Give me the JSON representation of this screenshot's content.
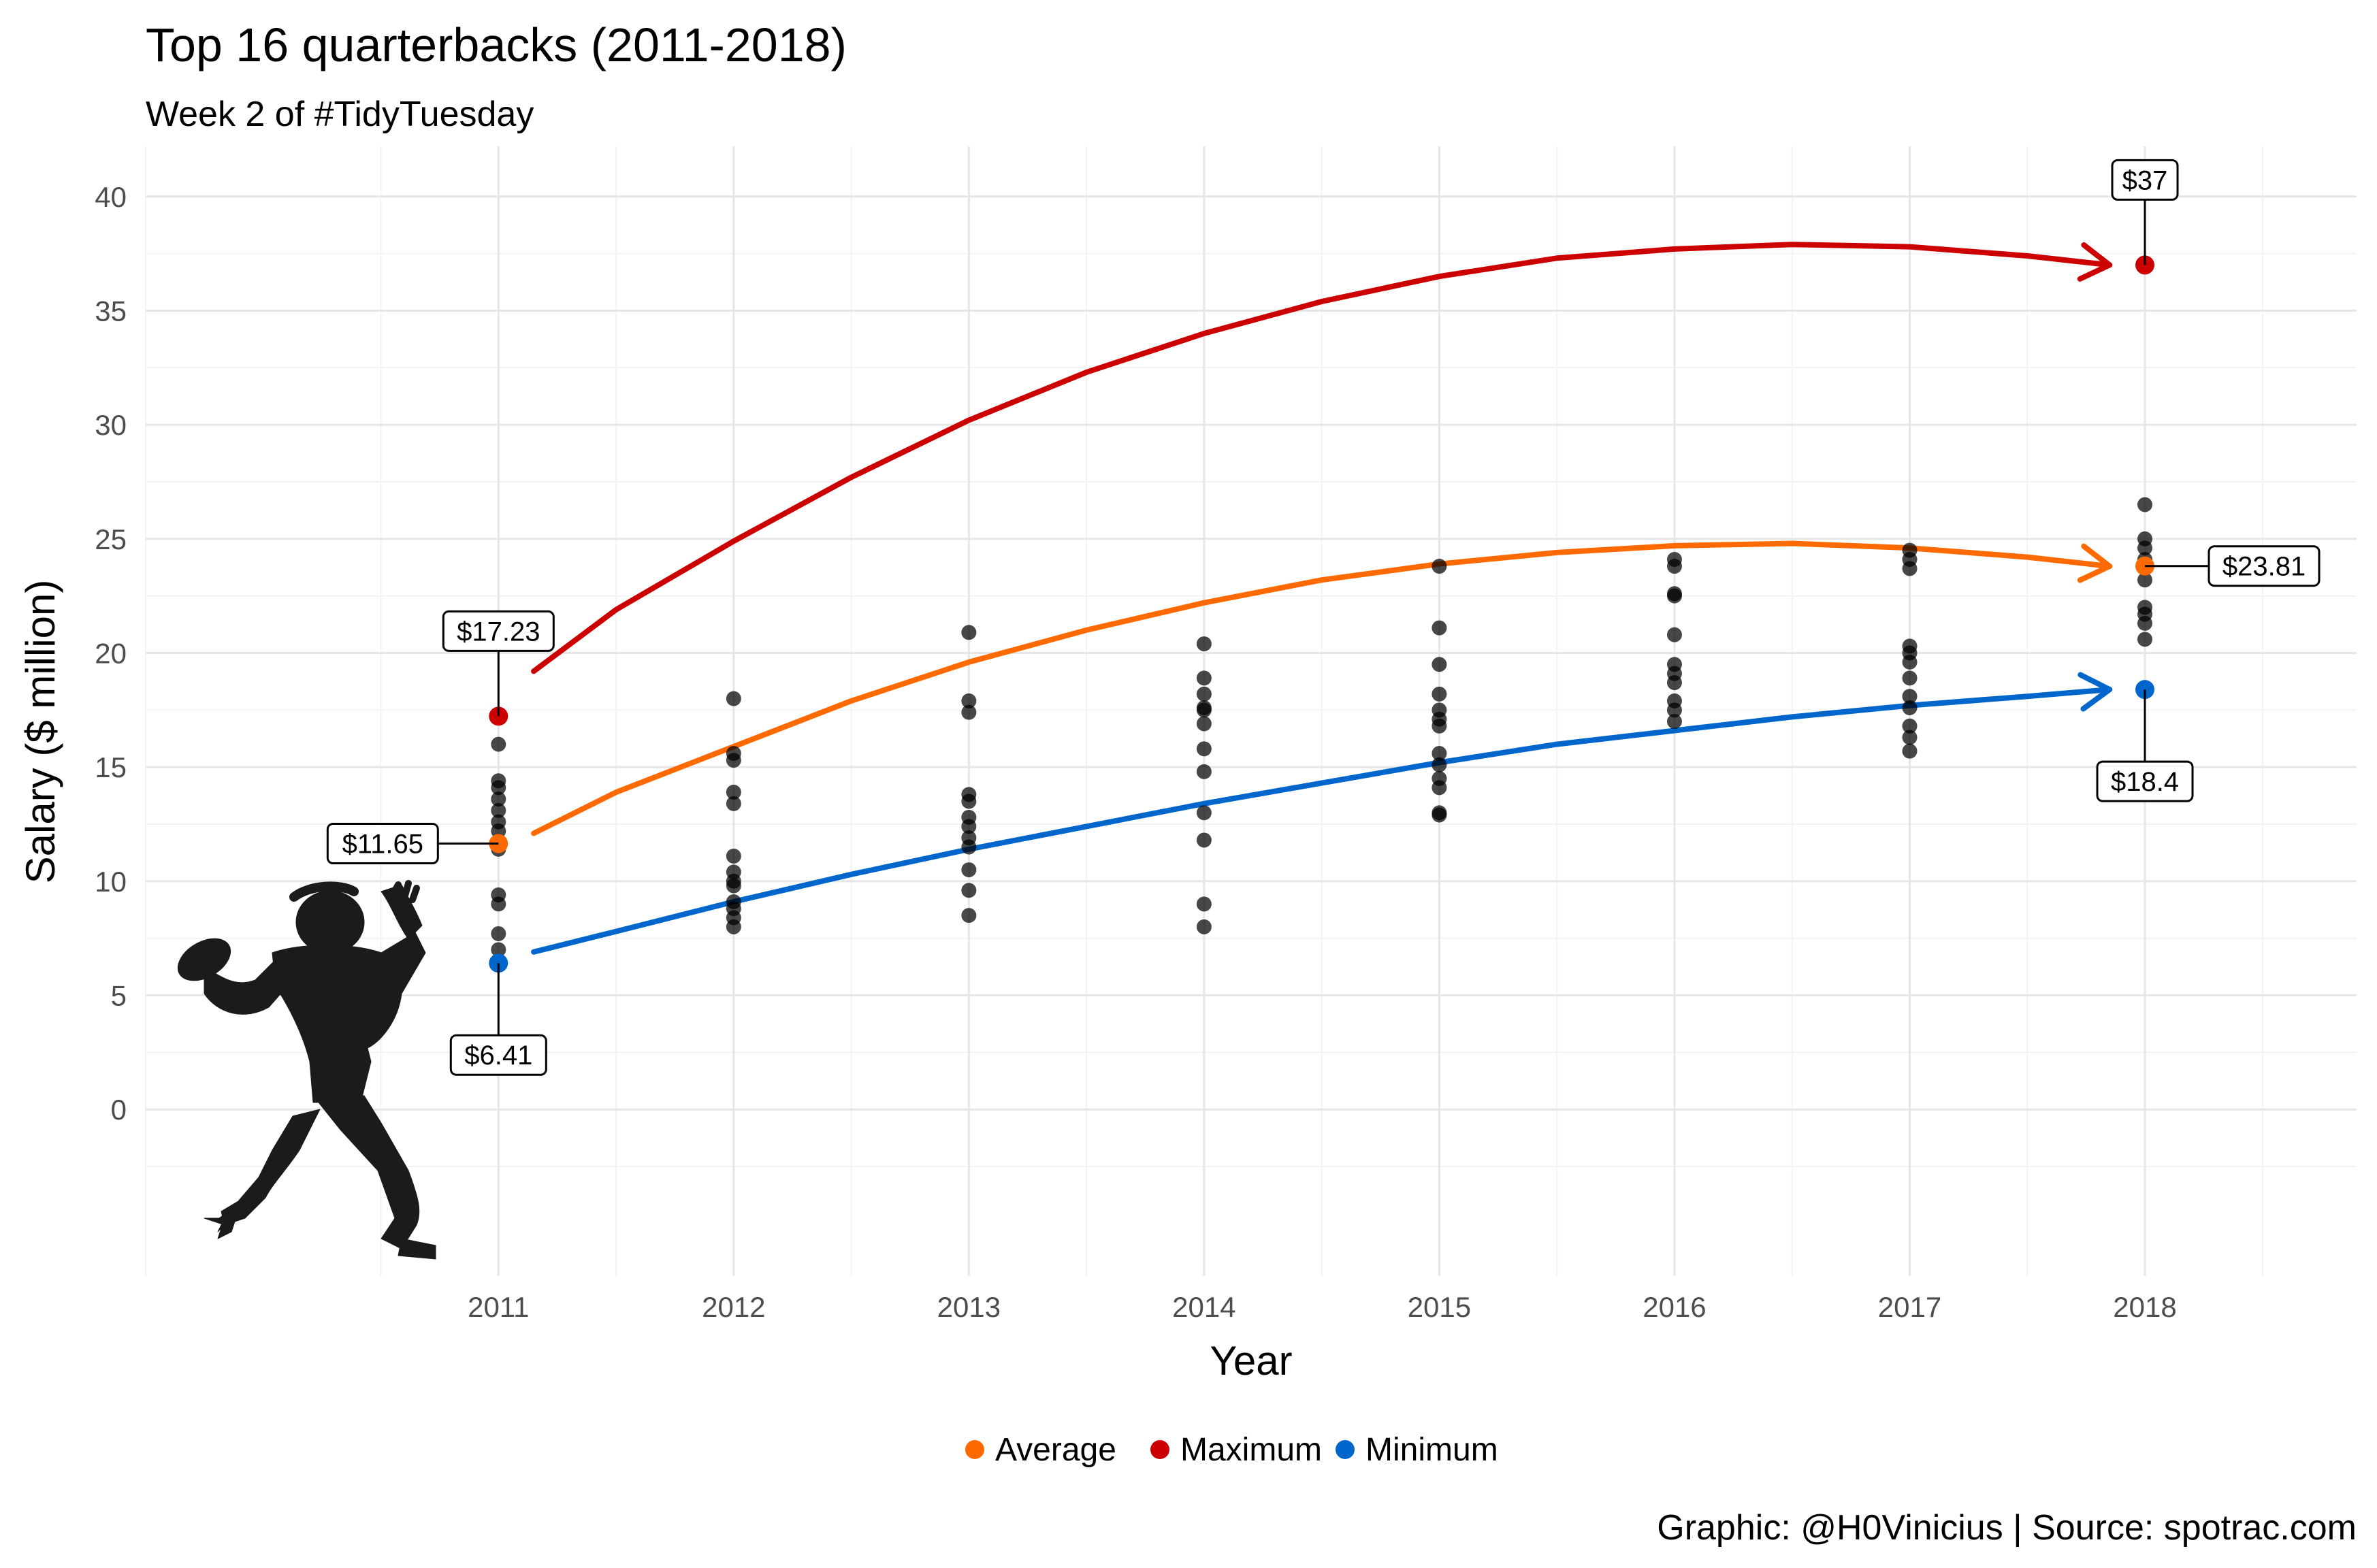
{
  "chart_data": {
    "type": "scatter",
    "title": "Top 16 quarterbacks (2011-2018)",
    "subtitle": "Week 2 of #TidyTuesday",
    "caption": "Graphic: @H0Vinicius | Source: spotrac.com",
    "xlabel": "Year",
    "ylabel": "Salary ($ million)",
    "xlim": [
      2009.5,
      2018.9
    ],
    "ylim": [
      -7.3,
      42.2
    ],
    "x_ticks": [
      2011,
      2012,
      2013,
      2014,
      2015,
      2016,
      2017,
      2018
    ],
    "y_ticks": [
      0,
      5,
      10,
      15,
      20,
      25,
      30,
      35,
      40
    ],
    "grid": true,
    "legend_position": "bottom",
    "legend": [
      {
        "name": "Average",
        "color": "#ff6a00"
      },
      {
        "name": "Maximum",
        "color": "#cc0000"
      },
      {
        "name": "Minimum",
        "color": "#0066cc"
      }
    ],
    "points": [
      {
        "year": 2011,
        "values": [
          16.0,
          14.4,
          14.1,
          13.6,
          13.1,
          12.6,
          12.2,
          11.4,
          9.4,
          9.0,
          7.7,
          7.0
        ]
      },
      {
        "year": 2012,
        "values": [
          18.0,
          15.6,
          15.3,
          13.9,
          13.4,
          11.1,
          10.4,
          10.0,
          9.8,
          9.1,
          8.8,
          8.4,
          8.0
        ]
      },
      {
        "year": 2013,
        "values": [
          20.9,
          17.9,
          17.4,
          13.8,
          13.5,
          12.8,
          12.4,
          11.9,
          11.5,
          10.5,
          9.6,
          8.5
        ]
      },
      {
        "year": 2014,
        "values": [
          20.4,
          18.9,
          18.2,
          17.6,
          17.5,
          16.9,
          15.8,
          14.8,
          13.0,
          11.8,
          9.0,
          8.0
        ]
      },
      {
        "year": 2015,
        "values": [
          23.8,
          21.1,
          19.5,
          18.2,
          17.5,
          17.1,
          16.8,
          15.6,
          15.1,
          14.5,
          14.1,
          13.0,
          12.9
        ]
      },
      {
        "year": 2016,
        "values": [
          24.1,
          23.8,
          22.6,
          22.5,
          20.8,
          19.5,
          19.1,
          18.7,
          17.9,
          17.5,
          17.0
        ]
      },
      {
        "year": 2017,
        "values": [
          24.5,
          24.1,
          23.7,
          20.3,
          20.0,
          19.6,
          18.9,
          18.1,
          17.6,
          16.8,
          16.3,
          15.7
        ]
      },
      {
        "year": 2018,
        "values": [
          26.5,
          25.0,
          24.6,
          24.1,
          23.2,
          22.0,
          21.7,
          21.3,
          20.6
        ]
      }
    ],
    "series": [
      {
        "name": "Maximum",
        "color": "#cc0000",
        "curve_x": [
          2011.15,
          2011.5,
          2012,
          2012.5,
          2013,
          2013.5,
          2014,
          2014.5,
          2015,
          2015.5,
          2016,
          2016.5,
          2017,
          2017.5,
          2017.85
        ],
        "curve_y": [
          19.2,
          21.9,
          24.9,
          27.7,
          30.2,
          32.3,
          34.0,
          35.4,
          36.5,
          37.3,
          37.7,
          37.9,
          37.8,
          37.4,
          37.0
        ],
        "endpoints": [
          {
            "x": 2011,
            "y": 17.23,
            "label": "$17.23",
            "label_side": "above"
          },
          {
            "x": 2018,
            "y": 37.0,
            "label": "$37",
            "label_side": "above"
          }
        ]
      },
      {
        "name": "Average",
        "color": "#ff6a00",
        "curve_x": [
          2011.15,
          2011.5,
          2012,
          2012.5,
          2013,
          2013.5,
          2014,
          2014.5,
          2015,
          2015.5,
          2016,
          2016.5,
          2017,
          2017.5,
          2017.85
        ],
        "curve_y": [
          12.1,
          13.9,
          15.9,
          17.9,
          19.6,
          21.0,
          22.2,
          23.2,
          23.9,
          24.4,
          24.7,
          24.8,
          24.6,
          24.2,
          23.8
        ],
        "endpoints": [
          {
            "x": 2011,
            "y": 11.65,
            "label": "$11.65",
            "label_side": "left"
          },
          {
            "x": 2018,
            "y": 23.81,
            "label": "$23.81",
            "label_side": "right"
          }
        ]
      },
      {
        "name": "Minimum",
        "color": "#0066cc",
        "curve_x": [
          2011.15,
          2011.5,
          2012,
          2012.5,
          2013,
          2013.5,
          2014,
          2014.5,
          2015,
          2015.5,
          2016,
          2016.5,
          2017,
          2017.5,
          2017.85
        ],
        "curve_y": [
          6.9,
          7.8,
          9.1,
          10.3,
          11.4,
          12.4,
          13.4,
          14.3,
          15.2,
          16.0,
          16.6,
          17.2,
          17.7,
          18.1,
          18.4
        ],
        "endpoints": [
          {
            "x": 2011,
            "y": 6.41,
            "label": "$6.41",
            "label_side": "below"
          },
          {
            "x": 2018,
            "y": 18.4,
            "label": "$18.4",
            "label_side": "below"
          }
        ]
      }
    ]
  }
}
